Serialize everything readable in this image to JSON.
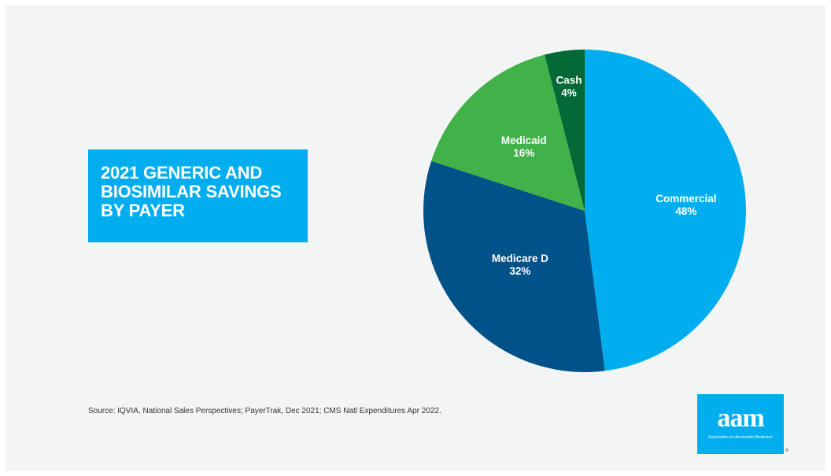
{
  "title": {
    "lines": [
      "2021 GENERIC AND",
      "BIOSIMILAR SAVINGS",
      "BY PAYER"
    ]
  },
  "chart_data": {
    "type": "pie",
    "title": "2021 GENERIC AND BIOSIMILAR SAVINGS BY PAYER",
    "slices": [
      {
        "label": "Commercial",
        "value": 48,
        "display": "48%",
        "color": "#00aeef"
      },
      {
        "label": "Medicare D",
        "value": 32,
        "display": "32%",
        "color": "#005288"
      },
      {
        "label": "Medicaid",
        "value": 16,
        "display": "16%",
        "color": "#41b14a"
      },
      {
        "label": "Cash",
        "value": 4,
        "display": "4%",
        "color": "#036936"
      }
    ],
    "start": "12 o'clock",
    "direction": "clockwise",
    "legend": "none"
  },
  "source": "Source: IQVIA, National Sales Perspectives; PayerTrak, Dec 2021; CMS Natl Expenditures Apr 2022.",
  "logo": {
    "mark": "aam",
    "subtitle": "Association for Accessible Medicines",
    "registered": "®",
    "color": "#00aeef"
  }
}
